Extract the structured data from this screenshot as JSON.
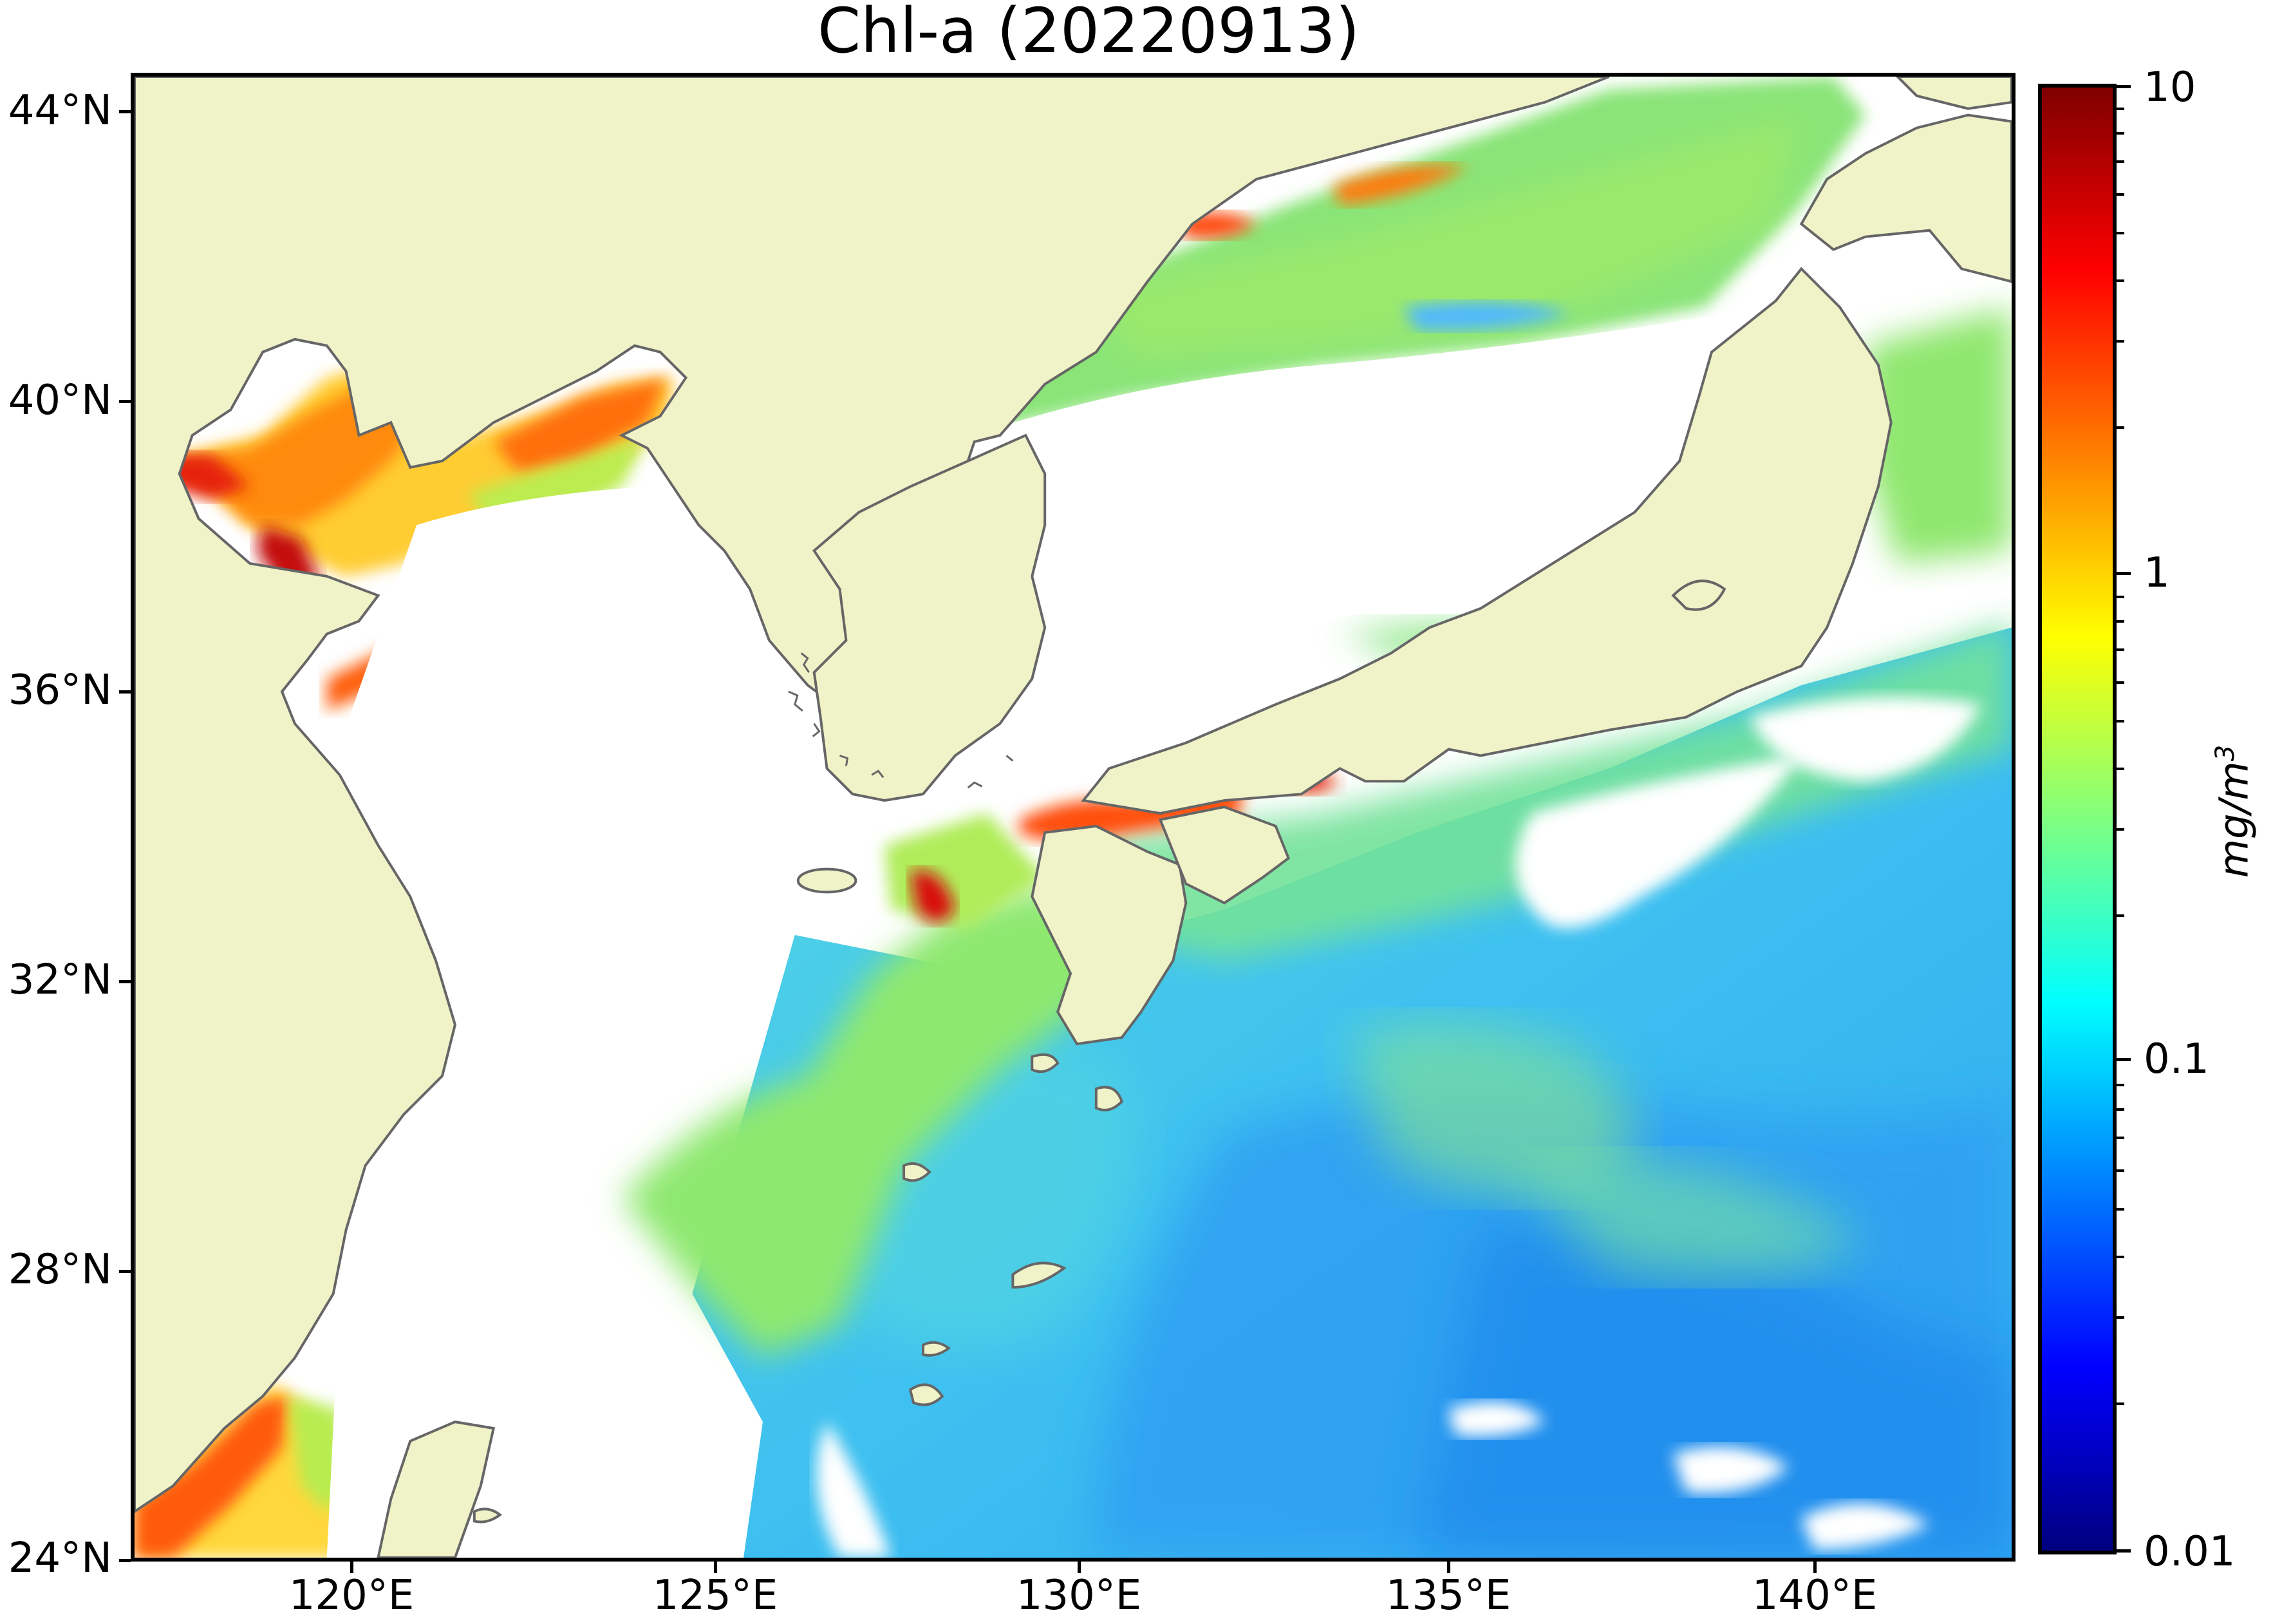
{
  "title": "Chl-a (20220913)",
  "latitude_labels": [
    "44°N",
    "40°N",
    "36°N",
    "32°N",
    "28°N",
    "24°N"
  ],
  "longitude_labels": [
    "120°E",
    "125°E",
    "130°E",
    "135°E",
    "140°E"
  ],
  "colorbar": {
    "ticks": [
      "10",
      "1",
      "0.1",
      "0.01"
    ],
    "unit_base": "mg/m",
    "unit_exp": "3",
    "scale": "log",
    "colormap": "jet",
    "colors": [
      "#00007f",
      "#0000ff",
      "#007fff",
      "#00ffff",
      "#7fff7f",
      "#ffff00",
      "#ff7f00",
      "#ff0000",
      "#7f0000"
    ]
  },
  "map_colors": {
    "land": "#f0f2c8",
    "coastline": "#666666",
    "no_data": "#ffffff",
    "low_chl_open_ocean": "#3fb8f5",
    "mid_chl_shelf": "#7fe87a",
    "high_chl_coastal": "#ff3c10"
  }
}
